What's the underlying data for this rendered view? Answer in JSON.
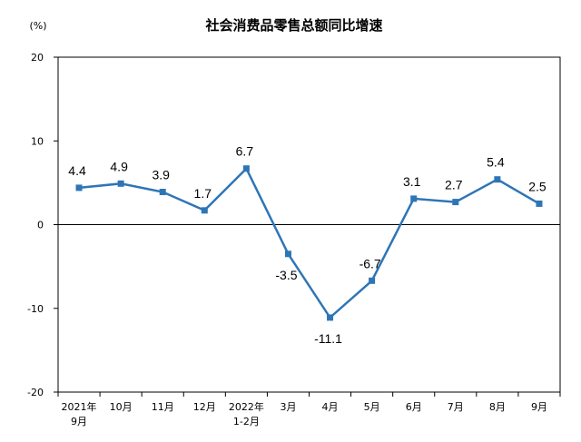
{
  "chart_data": {
    "type": "line",
    "title": "社会消费品零售总额同比增速",
    "unit": "(%)",
    "categories": [
      [
        "2021年",
        "9月"
      ],
      [
        "10月"
      ],
      [
        "11月"
      ],
      [
        "12月"
      ],
      [
        "2022年",
        "1-2月"
      ],
      [
        "3月"
      ],
      [
        "4月"
      ],
      [
        "5月"
      ],
      [
        "6月"
      ],
      [
        "7月"
      ],
      [
        "8月"
      ],
      [
        "9月"
      ]
    ],
    "values": [
      4.4,
      4.9,
      3.9,
      1.7,
      6.7,
      -3.5,
      -11.1,
      -6.7,
      3.1,
      2.7,
      5.4,
      2.5
    ],
    "data_labels": [
      "4.4",
      "4.9",
      "3.9",
      "1.7",
      "6.7",
      "-3.5",
      "-11.1",
      "-6.7",
      "3.1",
      "2.7",
      "5.4",
      "2.5"
    ],
    "label_position": [
      "above",
      "above",
      "above",
      "above",
      "above",
      "below",
      "below",
      "above",
      "above",
      "above",
      "above",
      "above"
    ],
    "ylim": [
      -20,
      20
    ],
    "yticks": [
      20,
      10,
      0,
      -10,
      -20
    ],
    "grid": false,
    "legend": "none",
    "line_color": "#2e75b6",
    "marker": "square"
  }
}
